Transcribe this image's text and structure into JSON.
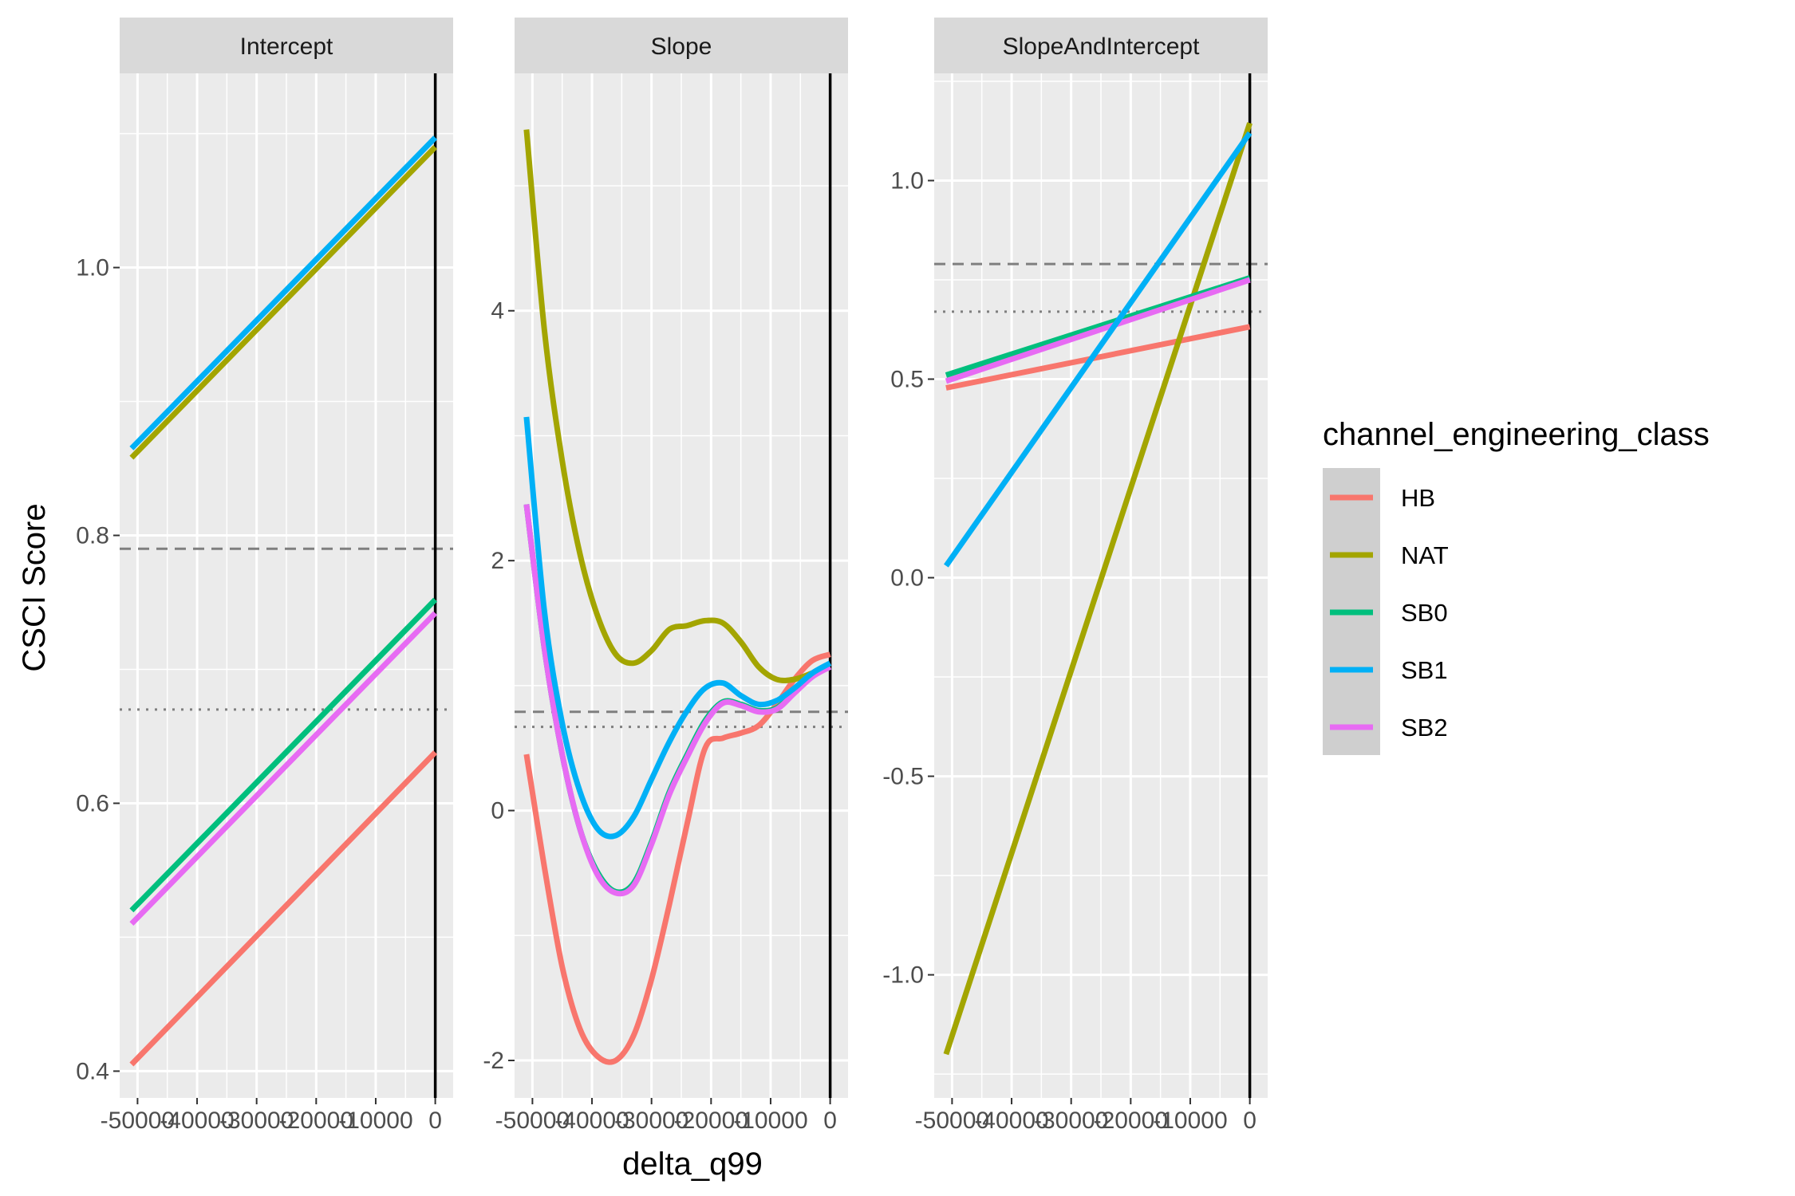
{
  "chart_data": {
    "type": "line",
    "facet_by": "model",
    "xlabel": "delta_q99",
    "ylabel": "CSCI Score",
    "x_ticks": [
      -50000,
      -40000,
      -30000,
      -20000,
      -10000,
      0
    ],
    "x_tick_labels": [
      "-50000",
      "-40000",
      "-30000",
      "-20000",
      "-10000",
      "0"
    ],
    "xlim": [
      -53000,
      3000
    ],
    "vline_x": 0,
    "hlines": [
      {
        "y": 0.79,
        "style": "dashed",
        "color": "#7f7f7f"
      },
      {
        "y": 0.67,
        "style": "dotted",
        "color": "#7f7f7f"
      }
    ],
    "legend": {
      "title": "channel_engineering_class",
      "position": "right",
      "entries": [
        {
          "name": "HB",
          "color": "#F8766D"
        },
        {
          "name": "NAT",
          "color": "#A3A500"
        },
        {
          "name": "SB0",
          "color": "#00BF7D"
        },
        {
          "name": "SB1",
          "color": "#00B0F6"
        },
        {
          "name": "SB2",
          "color": "#E76BF3"
        }
      ]
    },
    "panels": [
      {
        "title": "Intercept",
        "ylim": [
          0.38,
          1.145
        ],
        "y_ticks": [
          0.4,
          0.6,
          0.8,
          1.0
        ],
        "y_tick_labels": [
          "0.4",
          "0.6",
          "0.8",
          "1.0"
        ],
        "series": [
          {
            "name": "HB",
            "x": [
              -51000,
              0
            ],
            "y": [
              0.405,
              0.638
            ]
          },
          {
            "name": "NAT",
            "x": [
              -51000,
              0
            ],
            "y": [
              0.858,
              1.09
            ]
          },
          {
            "name": "SB0",
            "x": [
              -51000,
              0
            ],
            "y": [
              0.52,
              0.752
            ]
          },
          {
            "name": "SB1",
            "x": [
              -51000,
              0
            ],
            "y": [
              0.865,
              1.097
            ]
          },
          {
            "name": "SB2",
            "x": [
              -51000,
              0
            ],
            "y": [
              0.51,
              0.742
            ]
          }
        ]
      },
      {
        "title": "Slope",
        "ylim": [
          -2.3,
          5.9
        ],
        "y_ticks": [
          -2,
          0,
          2,
          4
        ],
        "y_tick_labels": [
          "-2",
          "0",
          "2",
          "4"
        ],
        "series": [
          {
            "name": "HB",
            "x": [
              -51000,
              -48000,
              -45000,
              -42000,
              -39000,
              -36000,
              -33000,
              -30000,
              -27000,
              -24000,
              -21000,
              -18000,
              -15000,
              -12000,
              -9000,
              -6000,
              -3000,
              0
            ],
            "y": [
              0.45,
              -0.45,
              -1.25,
              -1.75,
              -1.97,
              -2.0,
              -1.8,
              -1.35,
              -0.75,
              -0.1,
              0.5,
              0.58,
              0.62,
              0.68,
              0.85,
              1.05,
              1.2,
              1.25
            ]
          },
          {
            "name": "NAT",
            "x": [
              -51000,
              -48000,
              -45000,
              -42000,
              -39000,
              -36000,
              -33000,
              -30000,
              -27000,
              -24000,
              -21000,
              -18000,
              -15000,
              -12000,
              -9000,
              -6000,
              -3000,
              0
            ],
            "y": [
              5.45,
              3.85,
              2.8,
              2.05,
              1.55,
              1.25,
              1.18,
              1.28,
              1.45,
              1.48,
              1.52,
              1.5,
              1.35,
              1.15,
              1.05,
              1.05,
              1.1,
              1.15
            ]
          },
          {
            "name": "SB0",
            "x": [
              -51000,
              -48000,
              -45000,
              -42000,
              -39000,
              -36000,
              -33000,
              -30000,
              -27000,
              -24000,
              -21000,
              -18000,
              -15000,
              -12000,
              -9000,
              -6000,
              -3000,
              0
            ],
            "y": [
              2.45,
              1.3,
              0.45,
              -0.15,
              -0.5,
              -0.65,
              -0.58,
              -0.25,
              0.15,
              0.45,
              0.72,
              0.87,
              0.85,
              0.8,
              0.82,
              0.95,
              1.08,
              1.15
            ]
          },
          {
            "name": "SB1",
            "x": [
              -51000,
              -48000,
              -45000,
              -42000,
              -39000,
              -36000,
              -33000,
              -30000,
              -27000,
              -24000,
              -21000,
              -18000,
              -15000,
              -12000,
              -9000,
              -6000,
              -3000,
              0
            ],
            "y": [
              3.15,
              1.6,
              0.7,
              0.15,
              -0.15,
              -0.2,
              -0.05,
              0.25,
              0.55,
              0.8,
              0.98,
              1.02,
              0.92,
              0.85,
              0.88,
              0.98,
              1.1,
              1.18
            ]
          },
          {
            "name": "SB2",
            "x": [
              -51000,
              -48000,
              -45000,
              -42000,
              -39000,
              -36000,
              -33000,
              -30000,
              -27000,
              -24000,
              -21000,
              -18000,
              -15000,
              -12000,
              -9000,
              -6000,
              -3000,
              0
            ],
            "y": [
              2.45,
              1.3,
              0.45,
              -0.15,
              -0.52,
              -0.66,
              -0.6,
              -0.27,
              0.13,
              0.43,
              0.7,
              0.86,
              0.84,
              0.79,
              0.81,
              0.94,
              1.07,
              1.15
            ]
          }
        ]
      },
      {
        "title": "SlopeAndIntercept",
        "ylim": [
          -1.31,
          1.27
        ],
        "y_ticks": [
          -1.0,
          -0.5,
          0.0,
          0.5,
          1.0
        ],
        "y_tick_labels": [
          "-1.0",
          "-0.5",
          "0.0",
          "0.5",
          "1.0"
        ],
        "series": [
          {
            "name": "HB",
            "x": [
              -51000,
              0
            ],
            "y": [
              0.478,
              0.632
            ]
          },
          {
            "name": "NAT",
            "x": [
              -51000,
              0
            ],
            "y": [
              -1.2,
              1.145
            ]
          },
          {
            "name": "SB0",
            "x": [
              -51000,
              0
            ],
            "y": [
              0.51,
              0.755
            ]
          },
          {
            "name": "SB1",
            "x": [
              -51000,
              0
            ],
            "y": [
              0.03,
              1.12
            ]
          },
          {
            "name": "SB2",
            "x": [
              -51000,
              0
            ],
            "y": [
              0.495,
              0.75
            ]
          }
        ]
      }
    ]
  }
}
